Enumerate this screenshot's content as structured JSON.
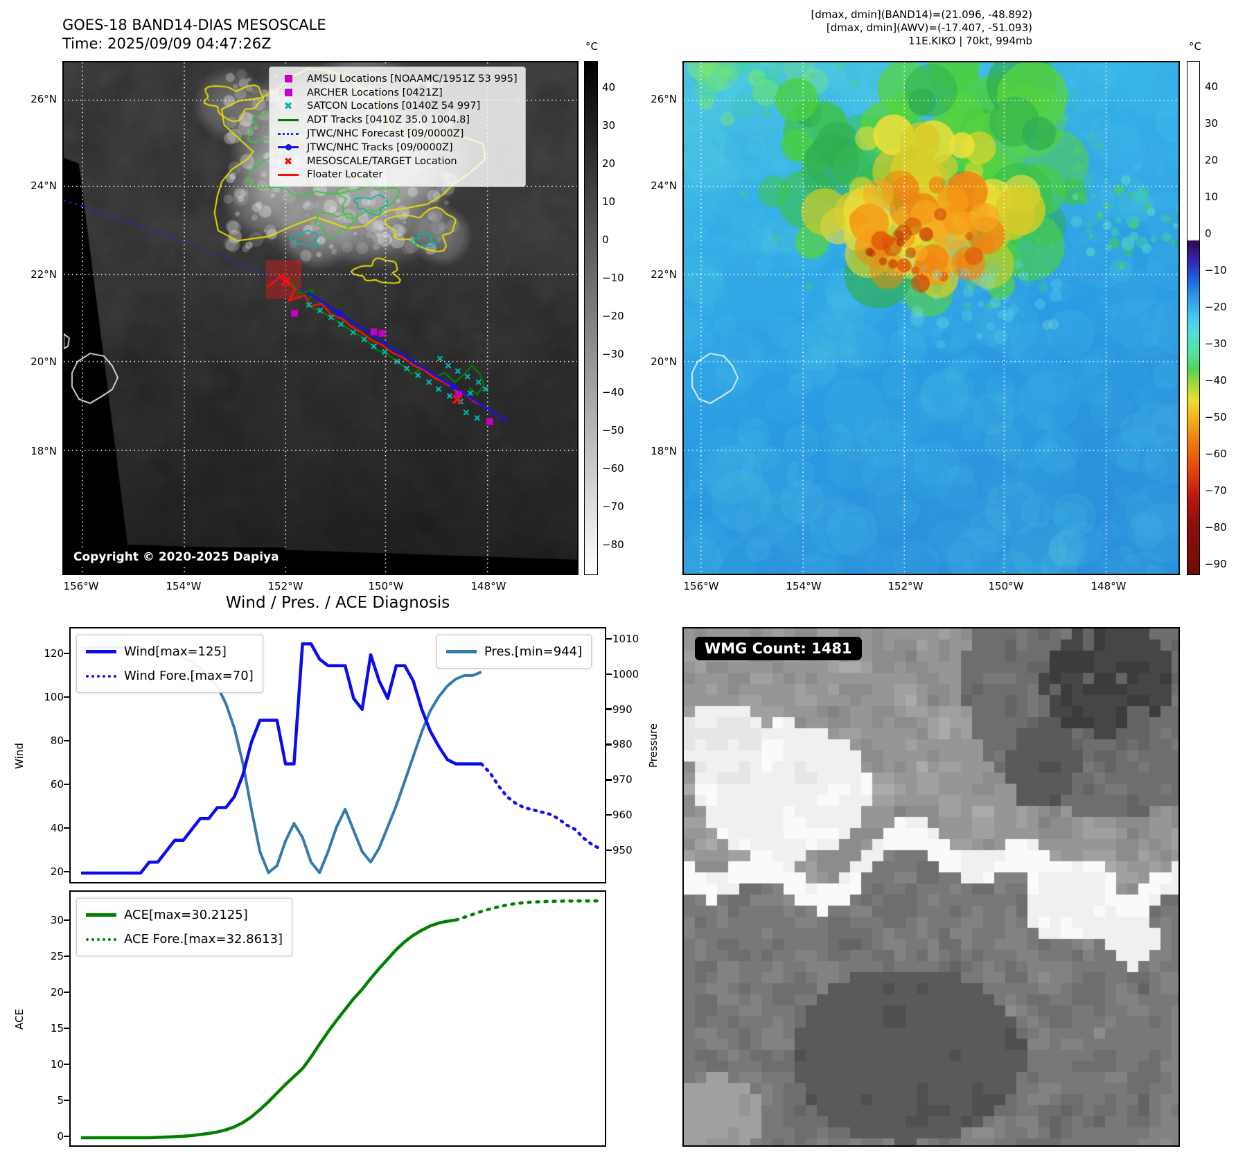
{
  "band14": {
    "title": "GOES-18 BAND14-DIAS MESOSCALE",
    "subtitle": "Time: 2025/09/09 04:47:26Z",
    "copyright": "Copyright © 2020-2025 Dapiya",
    "legend": [
      {
        "marker": "square",
        "color": "#c400c4",
        "label": "AMSU Locations [NOAAMC/1951Z 53 995]"
      },
      {
        "marker": "square",
        "color": "#c400c4",
        "label": "ARCHER Locations [0421Z]"
      },
      {
        "marker": "x",
        "color": "#00b4b4",
        "label": "SATCON Locations [0140Z 54 997]"
      },
      {
        "marker": "line",
        "color": "#007a00",
        "label": "ADT Tracks [0410Z 35.0 1004.8]"
      },
      {
        "marker": "dotted",
        "color": "#2828f0",
        "label": "JTWC/NHC Forecast [09/0000Z]"
      },
      {
        "marker": "line-dot",
        "color": "#1414e6",
        "label": "JTWC/NHC Tracks [09/0000Z]"
      },
      {
        "marker": "x",
        "color": "#ee1111",
        "label": "MESOSCALE/TARGET Location"
      },
      {
        "marker": "line",
        "color": "#ee1111",
        "label": "Floater Locater"
      }
    ],
    "colorbar": {
      "unit": "°C",
      "ticks": [
        40,
        30,
        20,
        10,
        0,
        -10,
        -20,
        -30,
        -40,
        -50,
        -60,
        -70,
        -80
      ]
    },
    "tracks": {
      "forecast_dotted": [
        [
          0,
          200
        ],
        [
          180,
          262
        ],
        [
          353,
          333
        ]
      ],
      "jtwc_solid": [
        [
          353,
          333
        ],
        [
          400,
          364
        ],
        [
          455,
          400
        ],
        [
          510,
          436
        ],
        [
          565,
          470
        ],
        [
          620,
          506
        ],
        [
          643,
          521
        ]
      ],
      "jtwc_markers": [
        [
          400,
          364
        ],
        [
          565,
          470
        ]
      ],
      "adt": [
        [
          330,
          316
        ],
        [
          342,
          336
        ],
        [
          362,
          330
        ],
        [
          352,
          352
        ],
        [
          378,
          364
        ],
        [
          398,
          376
        ],
        [
          418,
          390
        ],
        [
          438,
          402
        ],
        [
          452,
          416
        ],
        [
          470,
          424
        ],
        [
          492,
          440
        ],
        [
          505,
          452
        ],
        [
          522,
          444
        ],
        [
          538,
          458
        ],
        [
          552,
          450
        ],
        [
          568,
          464
        ],
        [
          582,
          452
        ],
        [
          592,
          440
        ],
        [
          604,
          452
        ],
        [
          610,
          468
        ],
        [
          600,
          482
        ],
        [
          588,
          472
        ]
      ],
      "floater": [
        [
          296,
          326
        ],
        [
          318,
          308
        ],
        [
          336,
          330
        ],
        [
          326,
          346
        ],
        [
          350,
          338
        ],
        [
          358,
          354
        ],
        [
          374,
          350
        ],
        [
          388,
          366
        ],
        [
          404,
          372
        ],
        [
          418,
          384
        ],
        [
          432,
          392
        ],
        [
          448,
          404
        ],
        [
          462,
          410
        ],
        [
          478,
          422
        ],
        [
          492,
          428
        ],
        [
          508,
          440
        ],
        [
          522,
          446
        ],
        [
          538,
          458
        ],
        [
          552,
          464
        ],
        [
          568,
          476
        ],
        [
          582,
          482
        ],
        [
          598,
          494
        ],
        [
          612,
          500
        ],
        [
          628,
          512
        ],
        [
          641,
          519
        ]
      ],
      "satcon": [
        [
          356,
          352
        ],
        [
          372,
          360
        ],
        [
          388,
          370
        ],
        [
          402,
          380
        ],
        [
          420,
          392
        ],
        [
          436,
          402
        ],
        [
          450,
          412
        ],
        [
          466,
          420
        ],
        [
          484,
          434
        ],
        [
          498,
          444
        ],
        [
          514,
          454
        ],
        [
          530,
          464
        ],
        [
          546,
          430
        ],
        [
          558,
          440
        ],
        [
          572,
          448
        ],
        [
          586,
          456
        ],
        [
          544,
          474
        ],
        [
          560,
          484
        ],
        [
          576,
          492
        ],
        [
          590,
          480
        ],
        [
          602,
          464
        ],
        [
          612,
          474
        ],
        [
          584,
          508
        ],
        [
          600,
          516
        ]
      ],
      "amsu_squares": [
        [
          335,
          364
        ],
        [
          450,
          391
        ],
        [
          462,
          393
        ],
        [
          573,
          482
        ],
        [
          618,
          521
        ]
      ],
      "meso_x": [
        [
          322,
          318
        ],
        [
          571,
          489
        ]
      ],
      "target_box": [
        293,
        287,
        52,
        56
      ]
    }
  },
  "awv": {
    "annotation": [
      "[dmax, dmin](BAND14)=(21.096, -48.892)",
      "[dmax, dmin](AWV)=(-17.407, -51.093)",
      "11E.KIKO | 70kt, 994mb"
    ],
    "colorbar": {
      "unit": "°C",
      "ticks": [
        40,
        30,
        20,
        10,
        0,
        -10,
        -20,
        -30,
        -40,
        -50,
        -60,
        -70,
        -80,
        -90
      ]
    }
  },
  "geo": {
    "lat_ticks": [
      "26°N",
      "24°N",
      "22°N",
      "20°N",
      "18°N"
    ],
    "lon_ticks": [
      "156°W",
      "154°W",
      "152°W",
      "150°W",
      "148°W"
    ]
  },
  "diagnosis": {
    "suptitle": "Wind / Pres. / ACE Diagnosis",
    "legend_wind": [
      "Wind[max=125]",
      "Wind Fore.[max=70]"
    ],
    "legend_pres": [
      "Pres.[min=944]"
    ],
    "legend_ace": [
      "ACE[max=30.2125]",
      "ACE Fore.[max=32.8613]"
    ]
  },
  "wmg": {
    "badge": "WMG Count: 1481"
  },
  "chart_data": [
    {
      "type": "line",
      "title": "Wind / Pres. / ACE Diagnosis",
      "x_range": [
        0,
        61
      ],
      "axes": {
        "left": {
          "label": "Wind",
          "ticks": [
            20,
            40,
            60,
            80,
            100,
            120
          ],
          "range": [
            14.6,
            132
          ]
        },
        "right": {
          "label": "Pressure",
          "ticks": [
            950,
            960,
            970,
            980,
            990,
            1000,
            1010
          ],
          "range": [
            940.5,
            1013.3
          ]
        }
      },
      "legend_position": {
        "wind": "upper left",
        "pres": "upper right"
      },
      "grid": false,
      "series": [
        {
          "name": "Wind[max=125]",
          "axis": "left",
          "style": "solid",
          "color": "#0b0bee",
          "x_start": 0,
          "values": [
            20,
            20,
            20,
            20,
            20,
            20,
            20,
            20,
            25,
            25,
            30,
            35,
            35,
            40,
            45,
            45,
            50,
            50,
            55,
            65,
            80,
            90,
            90,
            90,
            70,
            70,
            125,
            125,
            118,
            115,
            115,
            115,
            100,
            95,
            120,
            108,
            100,
            115,
            115,
            108,
            95,
            85,
            78,
            72,
            70,
            70,
            70,
            70
          ]
        },
        {
          "name": "Wind Fore.[max=70]",
          "axis": "left",
          "style": "dotted",
          "color": "#1414e8",
          "x_start": 47,
          "values": [
            70,
            66,
            60,
            55,
            52,
            50,
            49,
            48,
            47,
            45,
            42,
            40,
            36,
            33,
            31
          ]
        },
        {
          "name": "Pres.[min=944]",
          "axis": "right",
          "style": "solid",
          "color": "#3579ad",
          "x_start": 0,
          "values": [
            1008,
            1008,
            1008,
            1008,
            1008,
            1008,
            1008,
            1008,
            1007,
            1007,
            1006,
            1006,
            1005,
            1004,
            1002,
            1000,
            997,
            992,
            985,
            975,
            962,
            950,
            944,
            946,
            953,
            958,
            954,
            947,
            944,
            950,
            957,
            962,
            956,
            950,
            947,
            951,
            957,
            963,
            970,
            977,
            984,
            990,
            994,
            997,
            999,
            1000,
            1000,
            1001
          ]
        }
      ]
    },
    {
      "type": "line",
      "x_range": [
        0,
        61
      ],
      "axes": {
        "left": {
          "label": "ACE",
          "ticks": [
            0,
            5,
            10,
            15,
            20,
            25,
            30
          ],
          "range": [
            -0.4,
            34.1
          ]
        }
      },
      "grid": false,
      "series": [
        {
          "name": "ACE[max=30.2125]",
          "axis": "left",
          "style": "solid",
          "color": "#008000",
          "x_start": 0,
          "values": [
            0,
            0,
            0,
            0,
            0,
            0,
            0,
            0,
            0,
            0.05,
            0.1,
            0.15,
            0.2,
            0.3,
            0.45,
            0.6,
            0.8,
            1.1,
            1.5,
            2.1,
            2.9,
            3.9,
            5,
            6.2,
            7.4,
            8.5,
            9.6,
            11.2,
            13,
            14.7,
            16.3,
            17.8,
            19.3,
            20.6,
            22.1,
            23.5,
            24.8,
            26.1,
            27.2,
            28.1,
            28.8,
            29.4,
            29.8,
            30.05,
            30.2125
          ]
        },
        {
          "name": "ACE Fore.[max=32.8613]",
          "axis": "left",
          "style": "dotted",
          "color": "#008000",
          "x_start": 44,
          "values": [
            30.2125,
            30.6,
            31,
            31.4,
            31.75,
            32.05,
            32.3,
            32.5,
            32.62,
            32.7,
            32.76,
            32.8,
            32.83,
            32.85,
            32.855,
            32.858,
            32.86,
            32.8613
          ]
        }
      ]
    }
  ]
}
